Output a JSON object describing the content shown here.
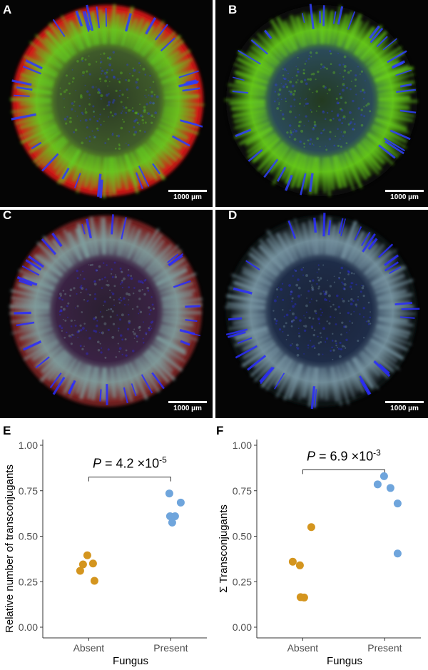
{
  "panels": [
    {
      "label": "A",
      "scalebar": "1000 µm",
      "colors": {
        "outer": "#d81818",
        "ring": "#62d020",
        "spike": "#2b3cff",
        "center": "#3f5a2a",
        "core": "#2b3a24"
      }
    },
    {
      "label": "B",
      "scalebar": "1000 µm",
      "colors": {
        "outer": "#0a0a0a",
        "ring": "#6ad41c",
        "spike": "#3040ff",
        "center": "#2b4a58",
        "core": "#233a20"
      }
    },
    {
      "label": "C",
      "scalebar": "1000 µm",
      "colors": {
        "outer": "#7a2020",
        "ring": "#7fa0a0",
        "spike": "#2a2cff",
        "center": "#3a2244",
        "core": "#2a2030"
      }
    },
    {
      "label": "D",
      "scalebar": "1000 µm",
      "colors": {
        "outer": "#101418",
        "ring": "#7c9aa8",
        "spike": "#2a2cff",
        "center": "#1e2c48",
        "core": "#1a2236"
      }
    }
  ],
  "chart_data": [
    {
      "label": "E",
      "type": "scatter",
      "categories": [
        "Absent",
        "Present"
      ],
      "xlabel": "Fungus",
      "ylabel": "Relative number of transconjugants",
      "ylim": [
        0,
        1
      ],
      "yticks": [
        "0.00",
        "0.25",
        "0.50",
        "0.75",
        "1.00"
      ],
      "grid": false,
      "annotation": {
        "p_prefix": "P",
        "p_value": " = 4.2 ×10",
        "p_exp": "-5",
        "y": 0.825
      },
      "series": [
        {
          "category": "Absent",
          "color": "#d4951e",
          "points": [
            {
              "x": -0.12,
              "y": 0.31
            },
            {
              "x": -0.08,
              "y": 0.345
            },
            {
              "x": -0.02,
              "y": 0.395
            },
            {
              "x": 0.06,
              "y": 0.35
            },
            {
              "x": 0.08,
              "y": 0.255
            }
          ]
        },
        {
          "category": "Present",
          "color": "#6fa5dc",
          "points": [
            {
              "x": -0.02,
              "y": 0.735
            },
            {
              "x": -0.01,
              "y": 0.61
            },
            {
              "x": 0.02,
              "y": 0.575
            },
            {
              "x": 0.06,
              "y": 0.61
            },
            {
              "x": 0.14,
              "y": 0.685
            }
          ]
        }
      ]
    },
    {
      "label": "F",
      "type": "scatter",
      "categories": [
        "Absent",
        "Present"
      ],
      "xlabel": "Fungus",
      "ylabel": "Σ Transconjugants",
      "ylim": [
        0,
        1
      ],
      "yticks": [
        "0.00",
        "0.25",
        "0.50",
        "0.75",
        "1.00"
      ],
      "grid": false,
      "annotation": {
        "p_prefix": "P",
        "p_value": " = 6.9 ×10",
        "p_exp": "-3",
        "y": 0.865
      },
      "series": [
        {
          "category": "Absent",
          "color": "#d4951e",
          "points": [
            {
              "x": -0.14,
              "y": 0.36
            },
            {
              "x": -0.04,
              "y": 0.34
            },
            {
              "x": -0.03,
              "y": 0.165
            },
            {
              "x": 0.02,
              "y": 0.163
            },
            {
              "x": 0.12,
              "y": 0.55
            }
          ]
        },
        {
          "category": "Present",
          "color": "#6fa5dc",
          "points": [
            {
              "x": -0.1,
              "y": 0.785
            },
            {
              "x": -0.01,
              "y": 0.83
            },
            {
              "x": 0.08,
              "y": 0.765
            },
            {
              "x": 0.18,
              "y": 0.68
            },
            {
              "x": 0.18,
              "y": 0.405
            }
          ]
        }
      ]
    }
  ]
}
